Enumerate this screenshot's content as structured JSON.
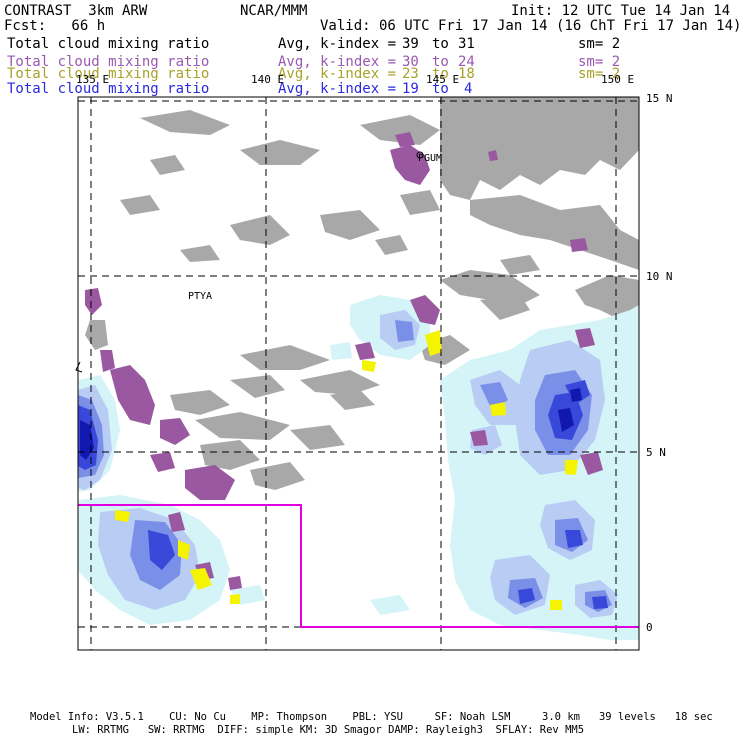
{
  "header": {
    "model": "CONTRAST  3km ARW",
    "org": "NCAR/MMM",
    "init": "Init: 12 UTC Tue 14 Jan 14",
    "fcst": "Fcst:   66 h",
    "valid": "Valid: 06 UTC Fri 17 Jan 14 (16 ChT Fri 17 Jan 14)"
  },
  "fields": [
    {
      "name": "Total cloud mixing ratio",
      "avg": "Avg, k-index =",
      "from": "39",
      "to_word": "to",
      "to": "31",
      "sm": "sm= 2",
      "color": "#000000"
    },
    {
      "name": "Total cloud mixing ratio",
      "avg": "Avg, k-index =",
      "from": "30",
      "to_word": "to",
      "to": "24",
      "sm": "sm= 2",
      "color": "#b070c8"
    },
    {
      "name": "Total cloud mixing ratio",
      "avg": "Avg, k-index =",
      "from": "23",
      "to_word": "to",
      "to": "18",
      "sm": "sm= 2",
      "color": "#a8a22a"
    },
    {
      "name": "Total cloud mixing ratio",
      "avg": "Avg, k-index =",
      "from": "19",
      "to_word": "to",
      "to": "4",
      "sm": "sm= 2",
      "color": "#2a2ae0"
    }
  ],
  "map": {
    "lon_labels": [
      "135 E",
      "140 E",
      "145 E",
      "150 E"
    ],
    "lat_labels": [
      "15 N",
      "10 N",
      "5 N",
      "0"
    ],
    "stations": [
      "PGUM",
      "PTYA"
    ],
    "colors": {
      "gray": "#a8a8a8",
      "purple": "#9a58a0",
      "yellow": "#f4f400",
      "light_cyan": "#d4f4f8",
      "light_blue": "#b8ccf4",
      "mid_blue": "#7a90e8",
      "blue": "#3848d8",
      "dark_blue": "#1018b0",
      "magenta_box": "#e000e0"
    }
  },
  "footer": {
    "line1": "Model Info: V3.5.1    CU: No Cu    MP: Thompson    PBL: YSU     SF: Noah LSM     3.0 km   39 levels   18 sec",
    "line2": "LW: RRTMG   SW: RRTMG  DIFF: simple KM: 3D Smagor DAMP: Rayleigh3  SFLAY: Rev MM5"
  }
}
